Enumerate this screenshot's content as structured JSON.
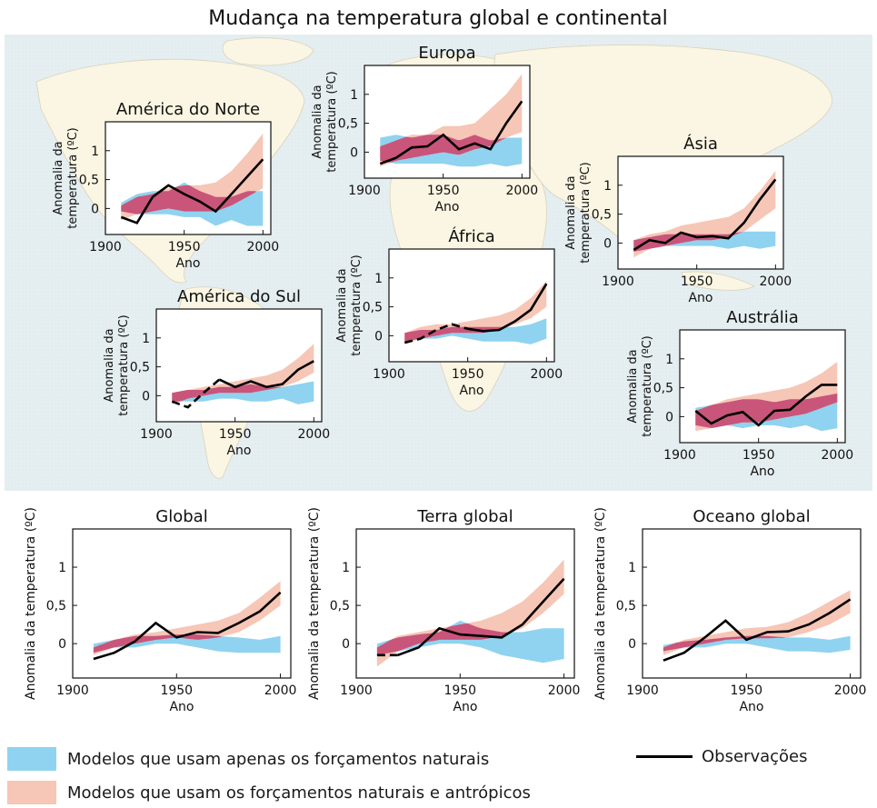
{
  "title": "Mudança na temperatura global e continental",
  "legend": {
    "natural": "Modelos que usam apenas os forçamentos naturais",
    "anthro": "Modelos que usam os forçamentos naturais e antrópicos",
    "observed": "Observações"
  },
  "colors": {
    "natural_band": "#8fd3f0",
    "anthro_band": "#f6c6b6",
    "overlap": "#c9557a",
    "observed_line": "#000000",
    "map_ocean": "#e6eef0",
    "map_land": "#fbf6e4"
  },
  "chart_data": [
    {
      "region": "América do Norte",
      "type": "line",
      "title": "América do Norte",
      "xlabel": "Ano",
      "ylabel": "Anomalia da temperatura (ºC)",
      "xlim": [
        1900,
        2005
      ],
      "ylim": [
        -0.45,
        1.5
      ],
      "xticks": [
        1900,
        1950,
        2000
      ],
      "yticks": [
        0,
        0.5,
        1
      ],
      "ytick_labels": [
        "0",
        "0,5",
        "1"
      ],
      "x": [
        1910,
        1920,
        1930,
        1940,
        1950,
        1960,
        1970,
        1980,
        1990,
        2000
      ],
      "observed": [
        -0.15,
        -0.25,
        0.2,
        0.4,
        0.25,
        0.12,
        -0.05,
        0.25,
        0.55,
        0.85
      ],
      "natural": {
        "low": [
          -0.05,
          -0.1,
          -0.1,
          -0.1,
          -0.15,
          -0.15,
          -0.3,
          -0.2,
          -0.3,
          -0.3
        ],
        "high": [
          0.1,
          0.25,
          0.3,
          0.3,
          0.45,
          0.3,
          0.2,
          0.2,
          0.3,
          0.3
        ]
      },
      "anthro": {
        "low": [
          -0.2,
          -0.1,
          -0.05,
          0.0,
          -0.05,
          -0.05,
          -0.05,
          0.05,
          0.2,
          0.35
        ],
        "high": [
          0.05,
          0.2,
          0.25,
          0.35,
          0.4,
          0.4,
          0.45,
          0.65,
          0.95,
          1.3
        ]
      }
    },
    {
      "region": "Europa",
      "type": "line",
      "title": "Europa",
      "xlabel": "Ano",
      "ylabel": "Anomalia da temperatura (ºC)",
      "xlim": [
        1900,
        2005
      ],
      "ylim": [
        -0.45,
        1.5
      ],
      "xticks": [
        1900,
        1950,
        2000
      ],
      "yticks": [
        0,
        0.5,
        1
      ],
      "ytick_labels": [
        "0",
        "0,5",
        "1"
      ],
      "x": [
        1910,
        1920,
        1930,
        1940,
        1950,
        1960,
        1970,
        1980,
        1990,
        2000
      ],
      "observed": [
        -0.2,
        -0.1,
        0.08,
        0.1,
        0.3,
        0.05,
        0.15,
        0.05,
        0.5,
        0.88
      ],
      "natural": {
        "low": [
          -0.15,
          -0.2,
          -0.2,
          -0.2,
          -0.2,
          -0.25,
          -0.25,
          -0.2,
          -0.25,
          -0.2
        ],
        "high": [
          0.25,
          0.3,
          0.25,
          0.3,
          0.3,
          0.2,
          0.3,
          0.2,
          0.25,
          0.25
        ]
      },
      "anthro": {
        "low": [
          -0.25,
          -0.15,
          -0.1,
          -0.05,
          0.0,
          -0.05,
          0.05,
          0.1,
          0.25,
          0.35
        ],
        "high": [
          0.1,
          0.2,
          0.3,
          0.3,
          0.45,
          0.45,
          0.5,
          0.75,
          1.0,
          1.35
        ]
      }
    },
    {
      "region": "Ásia",
      "type": "line",
      "title": "Ásia",
      "xlabel": "Ano",
      "ylabel": "Anomalia da temperatura (ºC)",
      "xlim": [
        1900,
        2005
      ],
      "ylim": [
        -0.45,
        1.5
      ],
      "xticks": [
        1900,
        1950,
        2000
      ],
      "yticks": [
        0,
        0.5,
        1
      ],
      "ytick_labels": [
        "0",
        "0,5",
        "1"
      ],
      "x": [
        1910,
        1920,
        1930,
        1940,
        1950,
        1960,
        1970,
        1980,
        1990,
        2000
      ],
      "observed": [
        -0.12,
        0.05,
        0.0,
        0.18,
        0.1,
        0.12,
        0.08,
        0.35,
        0.75,
        1.1
      ],
      "natural": {
        "low": [
          -0.15,
          -0.1,
          -0.05,
          -0.05,
          -0.05,
          -0.05,
          -0.1,
          -0.05,
          -0.1,
          -0.05
        ],
        "high": [
          0.05,
          0.1,
          0.15,
          0.15,
          0.15,
          0.15,
          0.15,
          0.2,
          0.2,
          0.2
        ]
      },
      "anthro": {
        "low": [
          -0.25,
          -0.1,
          -0.05,
          0.0,
          0.05,
          0.05,
          0.1,
          0.2,
          0.4,
          0.6
        ],
        "high": [
          0.05,
          0.15,
          0.2,
          0.3,
          0.35,
          0.4,
          0.45,
          0.6,
          0.9,
          1.25
        ]
      }
    },
    {
      "region": "América do Sul",
      "type": "line",
      "title": "América do Sul",
      "xlabel": "Ano",
      "ylabel": "Anomalia da temperatura (ºC)",
      "xlim": [
        1900,
        2005
      ],
      "ylim": [
        -0.45,
        1.5
      ],
      "xticks": [
        1900,
        1950,
        2000
      ],
      "yticks": [
        0,
        0.5,
        1
      ],
      "ytick_labels": [
        "0",
        "0,5",
        "1"
      ],
      "x": [
        1910,
        1920,
        1930,
        1940,
        1950,
        1960,
        1970,
        1980,
        1990,
        2000
      ],
      "observed": [
        -0.1,
        -0.2,
        0.05,
        0.28,
        0.15,
        0.25,
        0.15,
        0.2,
        0.45,
        0.6
      ],
      "observed_dashed_until": 1940,
      "natural": {
        "low": [
          -0.1,
          -0.1,
          -0.1,
          -0.05,
          -0.05,
          -0.1,
          -0.1,
          -0.05,
          -0.15,
          -0.1
        ],
        "high": [
          0.05,
          0.1,
          0.1,
          0.15,
          0.15,
          0.2,
          0.15,
          0.15,
          0.2,
          0.25
        ]
      },
      "anthro": {
        "low": [
          -0.15,
          -0.05,
          0.0,
          0.05,
          0.05,
          0.05,
          0.1,
          0.15,
          0.25,
          0.4
        ],
        "high": [
          0.05,
          0.1,
          0.15,
          0.2,
          0.25,
          0.3,
          0.35,
          0.45,
          0.65,
          0.9
        ]
      }
    },
    {
      "region": "África",
      "type": "line",
      "title": "África",
      "xlabel": "Ano",
      "ylabel": "Anomalia da temperatura (ºC)",
      "xlim": [
        1900,
        2005
      ],
      "ylim": [
        -0.45,
        1.5
      ],
      "xticks": [
        1900,
        1950,
        2000
      ],
      "yticks": [
        0,
        0.5,
        1
      ],
      "ytick_labels": [
        "0",
        "0,5",
        "1"
      ],
      "x": [
        1910,
        1920,
        1930,
        1940,
        1950,
        1960,
        1970,
        1980,
        1990,
        2000
      ],
      "observed": [
        -0.12,
        -0.05,
        0.1,
        0.2,
        0.12,
        0.08,
        0.1,
        0.25,
        0.45,
        0.9
      ],
      "observed_dashed_until": 1950,
      "natural": {
        "low": [
          -0.1,
          -0.05,
          -0.05,
          0.0,
          -0.05,
          -0.1,
          -0.1,
          -0.1,
          -0.15,
          -0.05
        ],
        "high": [
          0.05,
          0.1,
          0.1,
          0.15,
          0.15,
          0.15,
          0.15,
          0.15,
          0.2,
          0.3
        ]
      },
      "anthro": {
        "low": [
          -0.15,
          -0.05,
          0.0,
          0.05,
          0.05,
          0.05,
          0.1,
          0.2,
          0.3,
          0.5
        ],
        "high": [
          0.05,
          0.15,
          0.2,
          0.2,
          0.25,
          0.3,
          0.35,
          0.45,
          0.65,
          0.95
        ]
      }
    },
    {
      "region": "Austrália",
      "type": "line",
      "title": "Austrália",
      "xlabel": "Ano",
      "ylabel": "Anomalia da temperatura (ºC)",
      "xlim": [
        1900,
        2005
      ],
      "ylim": [
        -0.45,
        1.5
      ],
      "xticks": [
        1900,
        1950,
        2000
      ],
      "yticks": [
        0,
        0.5,
        1
      ],
      "ytick_labels": [
        "0",
        "0,5",
        "1"
      ],
      "x": [
        1910,
        1920,
        1930,
        1940,
        1950,
        1960,
        1970,
        1980,
        1990,
        2000
      ],
      "observed": [
        0.1,
        -0.12,
        0.02,
        0.08,
        -0.15,
        0.1,
        0.12,
        0.35,
        0.55,
        0.55
      ],
      "natural": {
        "low": [
          -0.15,
          -0.2,
          -0.15,
          -0.2,
          -0.15,
          -0.15,
          -0.2,
          -0.15,
          -0.25,
          -0.2
        ],
        "high": [
          0.15,
          0.2,
          0.25,
          0.3,
          0.3,
          0.25,
          0.3,
          0.3,
          0.35,
          0.4
        ]
      },
      "anthro": {
        "low": [
          -0.25,
          -0.2,
          -0.15,
          -0.1,
          -0.1,
          -0.05,
          0.0,
          0.05,
          0.15,
          0.25
        ],
        "high": [
          0.1,
          0.2,
          0.3,
          0.35,
          0.4,
          0.45,
          0.5,
          0.6,
          0.75,
          0.95
        ]
      }
    },
    {
      "region": "Global",
      "type": "line",
      "title": "Global",
      "xlabel": "Ano",
      "ylabel": "Anomalia da temperatura (ºC)",
      "xlim": [
        1900,
        2005
      ],
      "ylim": [
        -0.45,
        1.5
      ],
      "xticks": [
        1900,
        1950,
        2000
      ],
      "yticks": [
        0,
        0.5,
        1
      ],
      "ytick_labels": [
        "0",
        "0,5",
        "1"
      ],
      "x": [
        1910,
        1920,
        1930,
        1940,
        1950,
        1960,
        1970,
        1980,
        1990,
        2000
      ],
      "observed": [
        -0.2,
        -0.12,
        0.03,
        0.27,
        0.08,
        0.15,
        0.14,
        0.27,
        0.42,
        0.67
      ],
      "natural": {
        "low": [
          -0.12,
          -0.05,
          -0.05,
          0.0,
          0.0,
          -0.05,
          -0.1,
          -0.12,
          -0.12,
          -0.12
        ],
        "high": [
          0.0,
          0.05,
          0.1,
          0.1,
          0.12,
          0.12,
          0.1,
          0.08,
          0.05,
          0.1
        ]
      },
      "anthro": {
        "low": [
          -0.15,
          -0.05,
          0.0,
          0.05,
          0.08,
          0.05,
          0.08,
          0.15,
          0.3,
          0.5
        ],
        "high": [
          -0.05,
          0.05,
          0.12,
          0.15,
          0.2,
          0.25,
          0.3,
          0.4,
          0.6,
          0.82
        ]
      }
    },
    {
      "region": "Terra global",
      "type": "line",
      "title": "Terra global",
      "xlabel": "Ano",
      "ylabel": "Anomalia da temperatura (ºC)",
      "xlim": [
        1900,
        2005
      ],
      "ylim": [
        -0.45,
        1.5
      ],
      "xticks": [
        1900,
        1950,
        2000
      ],
      "yticks": [
        0,
        0.5,
        1
      ],
      "ytick_labels": [
        "0",
        "0,5",
        "1"
      ],
      "x": [
        1910,
        1920,
        1930,
        1940,
        1950,
        1960,
        1970,
        1980,
        1990,
        2000
      ],
      "observed": [
        -0.15,
        -0.15,
        -0.05,
        0.2,
        0.12,
        0.1,
        0.08,
        0.25,
        0.55,
        0.85
      ],
      "observed_dashed_until": 1920,
      "natural": {
        "low": [
          -0.15,
          -0.1,
          -0.05,
          0.0,
          0.0,
          -0.05,
          -0.15,
          -0.2,
          -0.25,
          -0.2
        ],
        "high": [
          0.0,
          0.08,
          0.12,
          0.15,
          0.3,
          0.2,
          0.15,
          0.15,
          0.2,
          0.2
        ]
      },
      "anthro": {
        "low": [
          -0.3,
          -0.1,
          0.0,
          0.05,
          0.05,
          0.05,
          0.1,
          0.2,
          0.4,
          0.65
        ],
        "high": [
          -0.05,
          0.1,
          0.15,
          0.2,
          0.25,
          0.3,
          0.4,
          0.55,
          0.8,
          1.1
        ]
      }
    },
    {
      "region": "Oceano global",
      "type": "line",
      "title": "Oceano global",
      "xlabel": "Ano",
      "ylabel": "Anomalia da temperatura (ºC)",
      "xlim": [
        1900,
        2005
      ],
      "ylim": [
        -0.45,
        1.5
      ],
      "xticks": [
        1900,
        1950,
        2000
      ],
      "yticks": [
        0,
        0.5,
        1
      ],
      "ytick_labels": [
        "0",
        "0,5",
        "1"
      ],
      "x": [
        1910,
        1920,
        1930,
        1940,
        1950,
        1960,
        1970,
        1980,
        1990,
        2000
      ],
      "observed": [
        -0.22,
        -0.12,
        0.08,
        0.3,
        0.05,
        0.15,
        0.16,
        0.25,
        0.4,
        0.58
      ],
      "natural": {
        "low": [
          -0.1,
          -0.05,
          -0.05,
          0.0,
          0.0,
          -0.05,
          -0.1,
          -0.1,
          -0.12,
          -0.08
        ],
        "high": [
          -0.02,
          0.03,
          0.05,
          0.08,
          0.1,
          0.1,
          0.08,
          0.08,
          0.05,
          0.1
        ]
      },
      "anthro": {
        "low": [
          -0.15,
          -0.05,
          0.0,
          0.05,
          0.07,
          0.07,
          0.08,
          0.15,
          0.25,
          0.4
        ],
        "high": [
          -0.05,
          0.05,
          0.1,
          0.15,
          0.2,
          0.22,
          0.28,
          0.4,
          0.55,
          0.7
        ]
      }
    }
  ]
}
